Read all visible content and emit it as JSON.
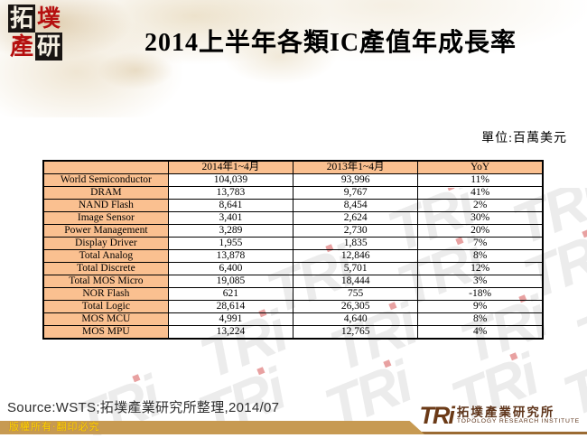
{
  "title": "2014上半年各類IC產值年成長率",
  "unit_label": "單位:百萬美元",
  "seal": {
    "chars": [
      "拓",
      "墣",
      "產",
      "研"
    ]
  },
  "table": {
    "headers": [
      "",
      "2014年1~4月",
      "2013年1~4月",
      "YoY"
    ],
    "rows": [
      [
        "World Semiconductor",
        "104,039",
        "93,996",
        "11%"
      ],
      [
        "DRAM",
        "13,783",
        "9,767",
        "41%"
      ],
      [
        "NAND Flash",
        "8,641",
        "8,454",
        "2%"
      ],
      [
        "Image Sensor",
        "3,401",
        "2,624",
        "30%"
      ],
      [
        "Power Management",
        "3,289",
        "2,730",
        "20%"
      ],
      [
        "Display Driver",
        "1,955",
        "1,835",
        "7%"
      ],
      [
        "Total Analog",
        "13,878",
        "12,846",
        "8%"
      ],
      [
        "Total Discrete",
        "6,400",
        "5,701",
        "12%"
      ],
      [
        "Total MOS Micro",
        "19,085",
        "18,444",
        "3%"
      ],
      [
        "NOR Flash",
        "621",
        "755",
        "-18%"
      ],
      [
        "Total Logic",
        "28,614",
        "26,305",
        "9%"
      ],
      [
        "MOS MCU",
        "4,991",
        "4,640",
        "8%"
      ],
      [
        "MOS MPU",
        "13,224",
        "12,765",
        "4%"
      ]
    ]
  },
  "source_line": "Source:WSTS;拓墣產業研究所整理,2014/07",
  "footer": {
    "copyright": "版權所有‧翻印必究",
    "logo_mark": "TRi",
    "logo_cn": "拓墣產業研究所",
    "logo_en": "TOPOLOGY RESEARCH INSTITUTE"
  },
  "watermark": {
    "text": "TRi"
  },
  "colors": {
    "table_header_bg": "#FAC090",
    "table_border": "#000000",
    "footer_bar": "#C79A52",
    "footer_line": "#9B6B33",
    "copyright_text": "#FFD400",
    "logo_brown": "#6B3A17",
    "seal_red": "#B50F0F",
    "seal_black": "#191513",
    "watermark_gray": "#ECECEC",
    "watermark_red": "#D65454"
  }
}
